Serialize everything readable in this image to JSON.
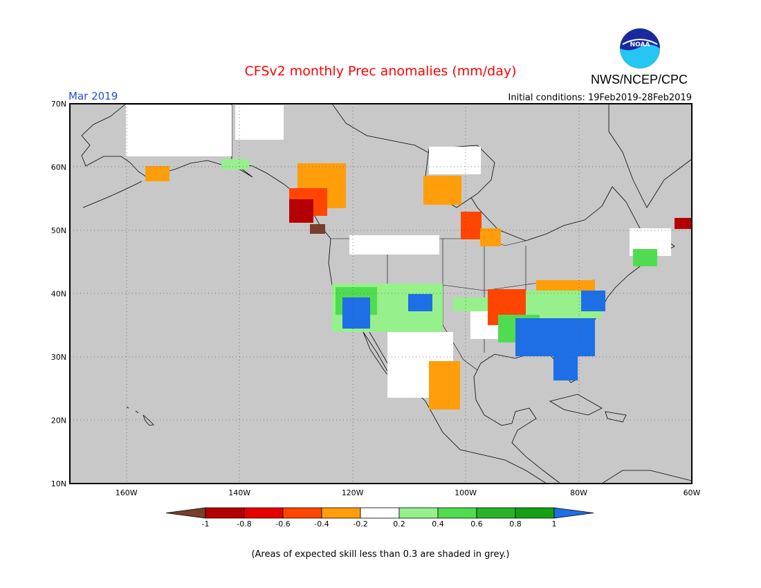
{
  "header": {
    "title": "CFSv2 monthly Prec anomalies (mm/day)",
    "month": "Mar 2019",
    "initial_conditions": "Initial conditions: 19Feb2019-28Feb2019",
    "agency": "NWS/NCEP/CPC",
    "logo_text": "NOAA"
  },
  "map": {
    "lat_labels": [
      "70N",
      "60N",
      "50N",
      "40N",
      "30N",
      "20N",
      "10N"
    ],
    "lon_labels": [
      "160W",
      "140W",
      "120W",
      "100W",
      "80W",
      "60W"
    ],
    "lat_range": [
      10,
      70
    ],
    "lon_range": [
      -170,
      -60
    ],
    "background_color": "#c8c8c8",
    "land_outline_color": "#000000",
    "grid": "dotted"
  },
  "legend": {
    "tick_labels": [
      "-1",
      "-0.8",
      "-0.6",
      "-0.4",
      "-0.2",
      "0.2",
      "0.4",
      "0.6",
      "0.8",
      "1"
    ],
    "colors": [
      "#7a3e2c",
      "#b40000",
      "#e60000",
      "#ff4500",
      "#ff9e0a",
      "#ffffff",
      "#96f08c",
      "#50dc50",
      "#28b428",
      "#14a014",
      "#1e6ee6"
    ]
  },
  "footnote": "(Areas of expected skill less than 0.3 are shaded in grey.)"
}
